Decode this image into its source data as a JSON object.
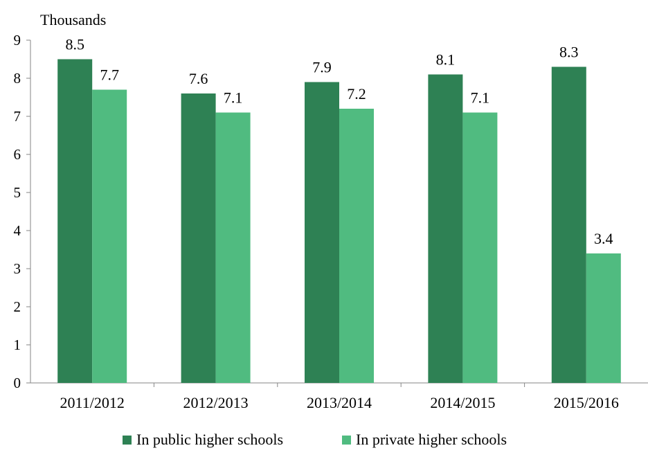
{
  "chart_data": {
    "type": "bar",
    "ylabel": "Thousands",
    "ylim": [
      0,
      9
    ],
    "yticks": [
      0,
      1,
      2,
      3,
      4,
      5,
      6,
      7,
      8,
      9
    ],
    "categories": [
      "2011/2012",
      "2012/2013",
      "2013/2014",
      "2014/2015",
      "2015/2016"
    ],
    "series": [
      {
        "name": "In public higher schools",
        "color": "#2e8154",
        "values": [
          8.5,
          7.6,
          7.9,
          8.1,
          8.3
        ],
        "labels": [
          "8.5",
          "7.6",
          "7.9",
          "8.1",
          "8.3"
        ]
      },
      {
        "name": "In private higher schools",
        "color": "#50bb80",
        "values": [
          7.7,
          7.1,
          7.2,
          7.1,
          3.4
        ],
        "labels": [
          "7.7",
          "7.1",
          "7.2",
          "7.1",
          "3.4"
        ]
      }
    ],
    "legend_position": "bottom",
    "grid": false
  }
}
